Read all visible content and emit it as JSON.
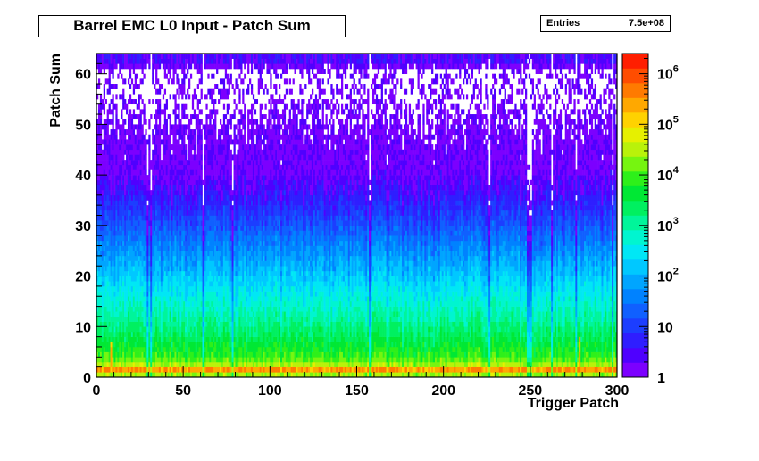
{
  "chart_data": {
    "type": "heatmap",
    "title": "Barrel EMC L0 Input - Patch Sum",
    "xlabel": "Trigger Patch",
    "ylabel": "Patch Sum",
    "xlim": [
      0,
      300
    ],
    "ylim": [
      0,
      64
    ],
    "x_ticks": [
      0,
      50,
      100,
      150,
      200,
      250,
      300
    ],
    "y_ticks": [
      0,
      10,
      20,
      30,
      40,
      50,
      60
    ],
    "z_scale": "log",
    "z_range": [
      1,
      2500000
    ],
    "z_tick_labels": [
      {
        "value": 1,
        "label": "1"
      },
      {
        "value": 10,
        "label": "10"
      },
      {
        "value": 100,
        "label": "10^2"
      },
      {
        "value": 1000,
        "label": "10^3"
      },
      {
        "value": 10000,
        "label": "10^4"
      },
      {
        "value": 100000,
        "label": "10^5"
      },
      {
        "value": 1000000,
        "label": "10^6"
      }
    ],
    "palette": [
      "#7c00ff",
      "#4f00ff",
      "#2f1eff",
      "#1c3eff",
      "#1060ff",
      "#0082ff",
      "#00a5ff",
      "#00c8ff",
      "#00e7f5",
      "#00f5d0",
      "#00f59a",
      "#00f060",
      "#00e834",
      "#2ef01a",
      "#76f510",
      "#b9f20a",
      "#e6f000",
      "#ffd200",
      "#ffa800",
      "#ff7a00",
      "#ff4d00",
      "#ff1e00"
    ],
    "stats": {
      "label": "Entries",
      "value": "7.5e+08"
    },
    "density_profile": [
      {
        "patch_sum": 0,
        "counts": 300
      },
      {
        "patch_sum": 1,
        "counts": 2000000
      },
      {
        "patch_sum": 2,
        "counts": 40000
      },
      {
        "patch_sum": 4,
        "counts": 8000
      },
      {
        "patch_sum": 8,
        "counts": 2500
      },
      {
        "patch_sum": 12,
        "counts": 900
      },
      {
        "patch_sum": 16,
        "counts": 400
      },
      {
        "patch_sum": 20,
        "counts": 150
      },
      {
        "patch_sum": 25,
        "counts": 50
      },
      {
        "patch_sum": 30,
        "counts": 15
      },
      {
        "patch_sum": 35,
        "counts": 5
      },
      {
        "patch_sum": 40,
        "counts": 2
      },
      {
        "patch_sum": 45,
        "counts": 1.2
      },
      {
        "patch_sum": 50,
        "counts": 0.6
      },
      {
        "patch_sum": 55,
        "counts": 0.35
      },
      {
        "patch_sum": 61,
        "counts": 0.3
      },
      {
        "patch_sum": 62,
        "counts": 3
      }
    ],
    "hot_patches": [
      {
        "trigger_patch": 8,
        "patch_sum_max": 6
      },
      {
        "trigger_patch": 278,
        "patch_sum_max": 7
      }
    ]
  }
}
